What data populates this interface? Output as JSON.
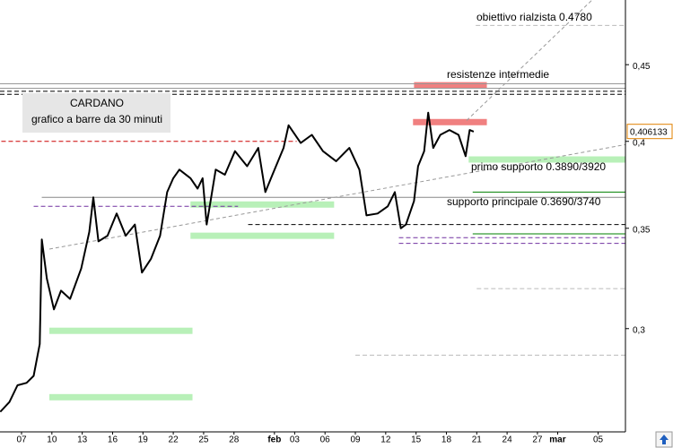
{
  "chart_data": {
    "type": "line",
    "title": "CARDANO",
    "subtitle": "grafico a barre da 30 minuti",
    "log_y": true,
    "xlim": [
      4.87,
      66.7
    ],
    "ylim": [
      0.256,
      0.497
    ],
    "xticks": [
      {
        "value": 7,
        "label": "07"
      },
      {
        "value": 10,
        "label": "10"
      },
      {
        "value": 13,
        "label": "13"
      },
      {
        "value": 16,
        "label": "16"
      },
      {
        "value": 19,
        "label": "19"
      },
      {
        "value": 22,
        "label": "22"
      },
      {
        "value": 25,
        "label": "25"
      },
      {
        "value": 28,
        "label": "28"
      },
      {
        "value": 32,
        "label": "feb"
      },
      {
        "value": 34,
        "label": "03"
      },
      {
        "value": 37,
        "label": "06"
      },
      {
        "value": 40,
        "label": "09"
      },
      {
        "value": 43,
        "label": "12"
      },
      {
        "value": 46,
        "label": "15"
      },
      {
        "value": 49,
        "label": "18"
      },
      {
        "value": 52,
        "label": "21"
      },
      {
        "value": 55,
        "label": "24"
      },
      {
        "value": 58,
        "label": "27"
      },
      {
        "value": 60,
        "label": "mar"
      },
      {
        "value": 64,
        "label": "05"
      }
    ],
    "yticks": [
      {
        "value": 0.45,
        "label": "0,45"
      },
      {
        "value": 0.4,
        "label": "0,4"
      },
      {
        "value": 0.35,
        "label": "0,35"
      },
      {
        "value": 0.3,
        "label": "0,3"
      }
    ],
    "series": [
      {
        "color": "#000000",
        "x": [
          4.9,
          5.8,
          6.6,
          7.5,
          8.2,
          8.8,
          9.0,
          9.5,
          10.2,
          10.9,
          11.8,
          12.9,
          13.7,
          14.1,
          14.6,
          15.5,
          16.4,
          17.3,
          18.2,
          18.9,
          19.8,
          20.7,
          21.4,
          22.0,
          22.6,
          23.7,
          24.4,
          24.9,
          25.3,
          25.6,
          26.2,
          27.1,
          28.1,
          29.3,
          30.4,
          31.1,
          31.8,
          32.9,
          33.4,
          34.6,
          35.7,
          36.8,
          38.1,
          39.4,
          40.4,
          41.1,
          42.2,
          43.2,
          43.9,
          44.5,
          45.0,
          45.8,
          46.2,
          46.8,
          47.2,
          47.7,
          48.4,
          49.3,
          50.2,
          50.9,
          51.3,
          51.7
        ],
        "values": [
          0.264,
          0.268,
          0.275,
          0.276,
          0.279,
          0.293,
          0.344,
          0.324,
          0.309,
          0.318,
          0.314,
          0.329,
          0.348,
          0.367,
          0.343,
          0.346,
          0.358,
          0.346,
          0.352,
          0.327,
          0.334,
          0.346,
          0.37,
          0.378,
          0.383,
          0.378,
          0.372,
          0.378,
          0.352,
          0.362,
          0.383,
          0.38,
          0.394,
          0.385,
          0.396,
          0.37,
          0.38,
          0.396,
          0.41,
          0.399,
          0.404,
          0.394,
          0.388,
          0.396,
          0.383,
          0.357,
          0.358,
          0.362,
          0.37,
          0.35,
          0.352,
          0.365,
          0.385,
          0.394,
          0.418,
          0.396,
          0.404,
          0.407,
          0.404,
          0.391,
          0.407,
          0.406
        ]
      }
    ],
    "last_price": {
      "value": 0.406133,
      "label": "0,406133"
    },
    "levels": [
      {
        "value": 0.478,
        "from": 51.9,
        "to": 66.7,
        "color": "#bbbbbb",
        "dashed": true
      },
      {
        "value": 0.437,
        "from": 4.87,
        "to": 66.7,
        "color": "#999999",
        "dashed": false
      },
      {
        "value": 0.434,
        "from": 4.87,
        "to": 66.7,
        "color": "#999999",
        "dashed": false
      },
      {
        "value": 0.432,
        "from": 4.87,
        "to": 66.7,
        "color": "#000000",
        "dashed": true
      },
      {
        "value": 0.43,
        "from": 4.87,
        "to": 66.7,
        "color": "#000000",
        "dashed": true
      },
      {
        "value": 0.4,
        "from": 5.0,
        "to": 34.2,
        "color": "#cc0000",
        "dashed": true
      },
      {
        "value": 0.367,
        "from": 9.0,
        "to": 66.7,
        "color": "#888888",
        "dashed": false
      },
      {
        "value": 0.37,
        "from": 51.6,
        "to": 66.7,
        "color": "#008000",
        "dashed": false
      },
      {
        "value": 0.347,
        "from": 51.6,
        "to": 66.7,
        "color": "#008000",
        "dashed": false
      },
      {
        "value": 0.362,
        "from": 8.2,
        "to": 28.4,
        "color": "#7030a0",
        "dashed": true
      },
      {
        "value": 0.352,
        "from": 29.4,
        "to": 66.7,
        "color": "#000000",
        "dashed": true
      },
      {
        "value": 0.345,
        "from": 44.3,
        "to": 66.7,
        "color": "#7030a0",
        "dashed": true
      },
      {
        "value": 0.342,
        "from": 44.3,
        "to": 66.7,
        "color": "#7030a0",
        "dashed": true
      },
      {
        "value": 0.319,
        "from": 52.0,
        "to": 66.7,
        "color": "#bbbbbb",
        "dashed": true
      },
      {
        "value": 0.288,
        "from": 40.0,
        "to": 66.7,
        "color": "#bbbbbb",
        "dashed": true
      }
    ],
    "zones": [
      {
        "value": 0.436,
        "from": 45.8,
        "to": 53.0,
        "color": "#f08080"
      },
      {
        "value": 0.412,
        "from": 45.7,
        "to": 53.0,
        "color": "#f08080"
      },
      {
        "value": 0.389,
        "from": 51.2,
        "to": 66.7,
        "color": "#b8f0b8"
      },
      {
        "value": 0.363,
        "from": 23.7,
        "to": 37.9,
        "color": "#b8f0b8"
      },
      {
        "value": 0.346,
        "from": 23.7,
        "to": 37.9,
        "color": "#b8f0b8"
      },
      {
        "value": 0.299,
        "from": 9.75,
        "to": 23.9,
        "color": "#b8f0b8"
      },
      {
        "value": 0.27,
        "from": 9.75,
        "to": 23.9,
        "color": "#b8f0b8"
      }
    ],
    "trendlines": [
      {
        "x": [
          9.75,
          66.7
        ],
        "y": [
          0.339,
          0.398
        ],
        "color": "#999999"
      },
      {
        "x": [
          51.0,
          63.4
        ],
        "y": [
          0.413,
          0.497
        ],
        "color": "#999999"
      }
    ],
    "annotations": [
      "obiettivo rialzista 0.4780",
      "resistenze intermedie",
      "primo supporto 0.3890/3920",
      "supporto principale 0.3690/3740"
    ]
  }
}
